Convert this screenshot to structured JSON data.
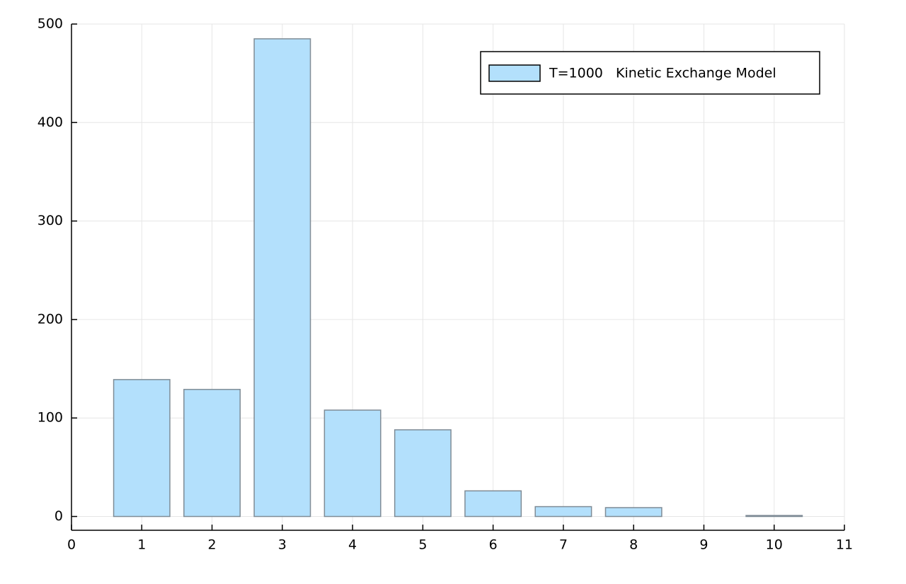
{
  "chart_data": {
    "type": "bar",
    "x": [
      1,
      2,
      3,
      4,
      5,
      6,
      7,
      8,
      9,
      10
    ],
    "series": [
      {
        "name": "T=1000   Kinetic Exchange Model",
        "color": "#b3e0fc",
        "values": [
          139,
          129,
          485,
          108,
          88,
          26,
          10,
          9,
          0,
          1
        ]
      }
    ],
    "xlim": [
      0,
      11
    ],
    "xticks": [
      0,
      1,
      2,
      3,
      4,
      5,
      6,
      7,
      8,
      9,
      10,
      11
    ],
    "ylim": [
      -14,
      500
    ],
    "yticks": [
      0,
      100,
      200,
      300,
      400,
      500
    ],
    "grid": true,
    "legend": "top right"
  }
}
